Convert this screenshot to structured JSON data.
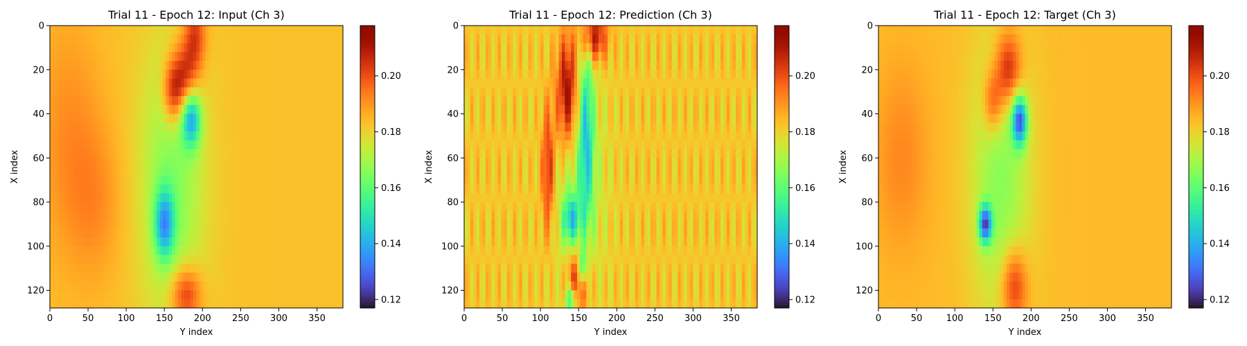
{
  "chart_data": [
    {
      "type": "heatmap",
      "title": "Trial 11 - Epoch 12: Input (Ch 3)",
      "xlabel": "Y index",
      "ylabel": "X index",
      "x_ticks": [
        "0",
        "50",
        "100",
        "150",
        "200",
        "250",
        "300",
        "350"
      ],
      "y_ticks": [
        "0",
        "20",
        "40",
        "60",
        "80",
        "100",
        "120"
      ],
      "xlim": [
        0,
        384
      ],
      "ylim": [
        128,
        0
      ],
      "colormap": "turbo",
      "colorbar": {
        "vmin": 0.117,
        "vmax": 0.218,
        "ticks": [
          "0.20",
          "0.18",
          "0.16",
          "0.14",
          "0.12"
        ]
      },
      "field": {
        "background": 0.183,
        "features": [
          {
            "x": 175,
            "y": 25,
            "sx": 12,
            "sy": 12,
            "a": 0.028
          },
          {
            "x": 160,
            "y": 30,
            "sx": 9,
            "sy": 10,
            "a": 0.02
          },
          {
            "x": 190,
            "y": 5,
            "sx": 10,
            "sy": 12,
            "a": 0.022
          },
          {
            "x": 178,
            "y": 122,
            "sx": 14,
            "sy": 9,
            "a": 0.025
          },
          {
            "x": 185,
            "y": 42,
            "sx": 9,
            "sy": 9,
            "a": -0.04
          },
          {
            "x": 150,
            "y": 90,
            "sx": 9,
            "sy": 11,
            "a": -0.035
          },
          {
            "x": 160,
            "y": 72,
            "sx": 30,
            "sy": 45,
            "a": -0.018
          },
          {
            "x": 25,
            "y": 50,
            "sx": 30,
            "sy": 40,
            "a": 0.008
          },
          {
            "x": 60,
            "y": 80,
            "sx": 25,
            "sy": 25,
            "a": 0.007
          }
        ]
      }
    },
    {
      "type": "heatmap",
      "title": "Trial 11 - Epoch 12: Prediction (Ch 3)",
      "xlabel": "Y index",
      "ylabel": "X index",
      "x_ticks": [
        "0",
        "50",
        "100",
        "150",
        "200",
        "250",
        "300",
        "350"
      ],
      "y_ticks": [
        "0",
        "20",
        "40",
        "60",
        "80",
        "100",
        "120"
      ],
      "xlim": [
        0,
        384
      ],
      "ylim": [
        128,
        0
      ],
      "colormap": "turbo",
      "colorbar": {
        "vmin": 0.117,
        "vmax": 0.218,
        "ticks": [
          "0.20",
          "0.18",
          "0.16",
          "0.14",
          "0.12"
        ]
      },
      "field": {
        "background": 0.182,
        "features": [
          {
            "x": 135,
            "y": 30,
            "sx": 10,
            "sy": 18,
            "a": 0.035
          },
          {
            "x": 170,
            "y": 5,
            "sx": 12,
            "sy": 8,
            "a": 0.03
          },
          {
            "x": 110,
            "y": 65,
            "sx": 6,
            "sy": 20,
            "a": 0.025
          },
          {
            "x": 150,
            "y": 115,
            "sx": 10,
            "sy": 10,
            "a": 0.03
          },
          {
            "x": 160,
            "y": 50,
            "sx": 7,
            "sy": 30,
            "a": -0.03
          },
          {
            "x": 140,
            "y": 88,
            "sx": 8,
            "sy": 8,
            "a": -0.03
          },
          {
            "x": 155,
            "y": 110,
            "sx": 4,
            "sy": 6,
            "a": -0.035
          },
          {
            "x": 140,
            "y": 124,
            "sx": 5,
            "sy": 4,
            "a": -0.03
          },
          {
            "x": 150,
            "y": 70,
            "sx": 25,
            "sy": 40,
            "a": -0.012
          }
        ],
        "stripes": 0.007
      }
    },
    {
      "type": "heatmap",
      "title": "Trial 11 - Epoch 12: Target (Ch 3)",
      "xlabel": "Y index",
      "ylabel": "X index",
      "x_ticks": [
        "0",
        "50",
        "100",
        "150",
        "200",
        "250",
        "300",
        "350"
      ],
      "y_ticks": [
        "0",
        "20",
        "40",
        "60",
        "80",
        "100",
        "120"
      ],
      "xlim": [
        0,
        384
      ],
      "ylim": [
        128,
        0
      ],
      "colormap": "turbo",
      "colorbar": {
        "vmin": 0.117,
        "vmax": 0.218,
        "ticks": [
          "0.20",
          "0.18",
          "0.16",
          "0.14",
          "0.12"
        ]
      },
      "field": {
        "background": 0.184,
        "features": [
          {
            "x": 170,
            "y": 20,
            "sx": 12,
            "sy": 12,
            "a": 0.028
          },
          {
            "x": 150,
            "y": 35,
            "sx": 9,
            "sy": 10,
            "a": 0.02
          },
          {
            "x": 178,
            "y": 118,
            "sx": 12,
            "sy": 12,
            "a": 0.024
          },
          {
            "x": 185,
            "y": 43,
            "sx": 7,
            "sy": 8,
            "a": -0.05
          },
          {
            "x": 140,
            "y": 90,
            "sx": 6,
            "sy": 6,
            "a": -0.05
          },
          {
            "x": 160,
            "y": 70,
            "sx": 28,
            "sy": 45,
            "a": -0.018
          },
          {
            "x": 30,
            "y": 60,
            "sx": 25,
            "sy": 30,
            "a": 0.008
          }
        ]
      }
    }
  ]
}
